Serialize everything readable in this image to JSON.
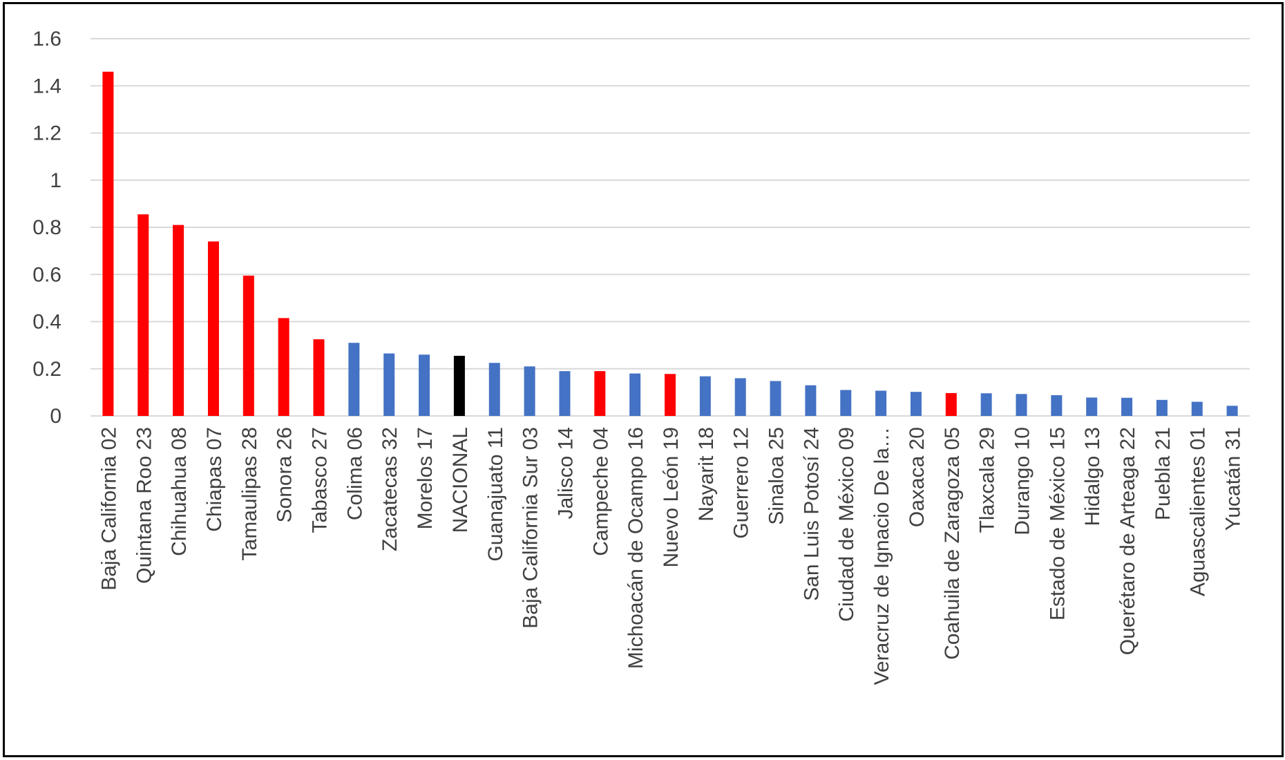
{
  "chart_data": {
    "type": "bar",
    "title": "",
    "xlabel": "",
    "ylabel": "",
    "ylim": [
      0,
      1.6
    ],
    "yticks": [
      "0",
      "0.2",
      "0.4",
      "0.6",
      "0.8",
      "1",
      "1.2",
      "1.4",
      "1.6"
    ],
    "grid": true,
    "legend": "none",
    "colors": {
      "red": "#ff0000",
      "blue": "#4472c4",
      "black": "#000000"
    },
    "categories": [
      "Baja California 02",
      "Quintana Roo 23",
      "Chihuahua 08",
      "Chiapas 07",
      "Tamaulipas 28",
      "Sonora 26",
      "Tabasco 27",
      "Colima 06",
      "Zacatecas 32",
      "Morelos 17",
      "NACIONAL",
      "Guanajuato 11",
      "Baja California Sur 03",
      "Jalisco 14",
      "Campeche 04",
      "Michoacán de Ocampo 16",
      "Nuevo León 19",
      "Nayarit 18",
      "Guerrero 12",
      "Sinaloa 25",
      "San Luis Potosí 24",
      "Ciudad de México 09",
      "Veracruz de Ignacio De la…",
      "Oaxaca 20",
      "Coahuila de Zaragoza 05",
      "Tlaxcala 29",
      "Durango 10",
      "Estado de México 15",
      "Hidalgo 13",
      "Querétaro de Arteaga 22",
      "Puebla 21",
      "Aguascalientes 01",
      "Yucatán 31"
    ],
    "values": [
      1.46,
      0.855,
      0.81,
      0.74,
      0.595,
      0.415,
      0.325,
      0.31,
      0.265,
      0.26,
      0.255,
      0.225,
      0.21,
      0.19,
      0.19,
      0.18,
      0.178,
      0.168,
      0.16,
      0.148,
      0.13,
      0.11,
      0.107,
      0.102,
      0.097,
      0.096,
      0.093,
      0.088,
      0.078,
      0.077,
      0.068,
      0.06,
      0.043
    ],
    "bar_colors": [
      "red",
      "red",
      "red",
      "red",
      "red",
      "red",
      "red",
      "blue",
      "blue",
      "blue",
      "black",
      "blue",
      "blue",
      "blue",
      "red",
      "blue",
      "red",
      "blue",
      "blue",
      "blue",
      "blue",
      "blue",
      "blue",
      "blue",
      "red",
      "blue",
      "blue",
      "blue",
      "blue",
      "blue",
      "blue",
      "blue",
      "blue"
    ]
  }
}
